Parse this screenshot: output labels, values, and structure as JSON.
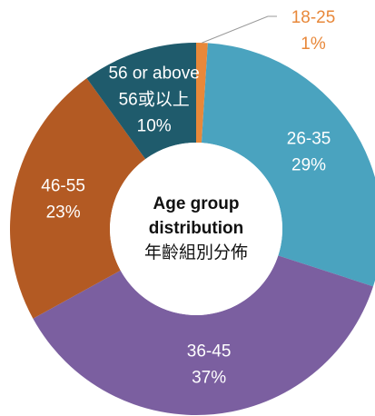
{
  "chart_data": {
    "type": "donut",
    "title": [
      "Age group",
      "distribution",
      "年齡組別分佈"
    ],
    "categories": [
      [
        "18-25"
      ],
      [
        "26-35"
      ],
      [
        "36-45"
      ],
      [
        "46-55"
      ],
      [
        "56 or above",
        "56或以上"
      ]
    ],
    "values": [
      1,
      29,
      37,
      23,
      10
    ],
    "value_labels": [
      "1%",
      "29%",
      "37%",
      "23%",
      "10%"
    ],
    "colors": [
      "#e8883a",
      "#4aa3bf",
      "#7b5fa0",
      "#b35a23",
      "#1f5b6c"
    ]
  }
}
